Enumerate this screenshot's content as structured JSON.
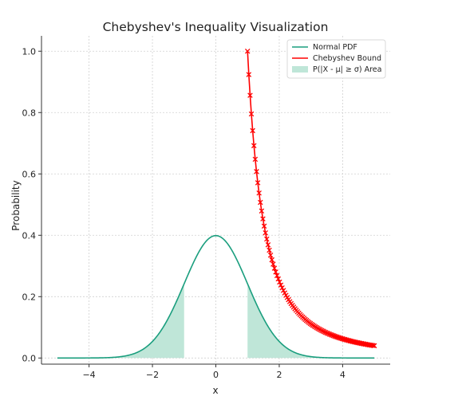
{
  "chart_data": {
    "type": "line",
    "title": "Chebyshev's Inequality Visualization",
    "xlabel": "x",
    "ylabel": "Probability",
    "xlim": [
      -5.5,
      5.5
    ],
    "ylim": [
      -0.02,
      1.05
    ],
    "xticks": [
      -4,
      -2,
      0,
      2,
      4
    ],
    "xtick_labels": [
      "−4",
      "−2",
      "0",
      "2",
      "4"
    ],
    "yticks": [
      0.0,
      0.2,
      0.4,
      0.6,
      0.8,
      1.0
    ],
    "ytick_labels": [
      "0.0",
      "0.2",
      "0.4",
      "0.6",
      "0.8",
      "1.0"
    ],
    "grid": true,
    "legend_position": "top-right",
    "series": [
      {
        "name": "Normal PDF",
        "kind": "line",
        "color": "#1a9e7e",
        "function": "standard normal pdf",
        "x_range": [
          -5,
          5
        ]
      },
      {
        "name": "Chebyshev Bound",
        "kind": "line-with-x-markers",
        "color": "#ff0000",
        "function": "1/k^2",
        "k_range": [
          1,
          5
        ],
        "points": 100
      },
      {
        "name": "P(|X - μ| ≥ σ) Area",
        "kind": "fill",
        "color": "#bfe6d8",
        "regions": [
          [
            -5,
            -1
          ],
          [
            1,
            5
          ]
        ]
      }
    ]
  }
}
